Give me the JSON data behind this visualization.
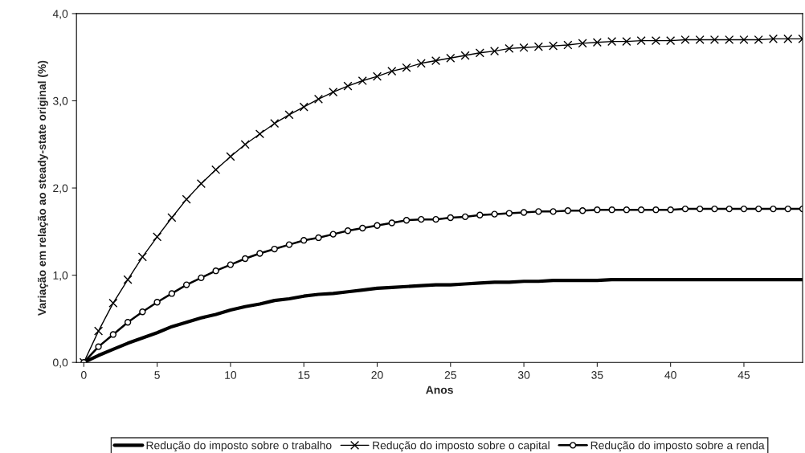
{
  "chart_data": {
    "type": "line",
    "xlabel": "Anos",
    "ylabel": "Variação em relação ao steady-state original (%)",
    "x": [
      0,
      1,
      2,
      3,
      4,
      5,
      6,
      7,
      8,
      9,
      10,
      11,
      12,
      13,
      14,
      15,
      16,
      17,
      18,
      19,
      20,
      21,
      22,
      23,
      24,
      25,
      26,
      27,
      28,
      29,
      30,
      31,
      32,
      33,
      34,
      35,
      36,
      37,
      38,
      39,
      40,
      41,
      42,
      43,
      44,
      45,
      46,
      47,
      48,
      49
    ],
    "series": [
      {
        "name": "Redução do imposto sobre o trabalho",
        "color": "#000000",
        "marker": "none",
        "values": [
          0,
          0.08,
          0.15,
          0.22,
          0.28,
          0.34,
          0.41,
          0.46,
          0.51,
          0.55,
          0.6,
          0.64,
          0.67,
          0.71,
          0.73,
          0.76,
          0.78,
          0.79,
          0.81,
          0.83,
          0.85,
          0.86,
          0.87,
          0.88,
          0.89,
          0.89,
          0.9,
          0.91,
          0.92,
          0.92,
          0.93,
          0.93,
          0.94,
          0.94,
          0.94,
          0.94,
          0.95,
          0.95,
          0.95,
          0.95,
          0.95,
          0.95,
          0.95,
          0.95,
          0.95,
          0.95,
          0.95,
          0.95,
          0.95,
          0.95
        ]
      },
      {
        "name": "Redução do imposto sobre o capital",
        "color": "#000000",
        "marker": "cross",
        "values": [
          0,
          0.36,
          0.68,
          0.95,
          1.21,
          1.44,
          1.66,
          1.87,
          2.05,
          2.21,
          2.36,
          2.5,
          2.62,
          2.74,
          2.84,
          2.93,
          3.02,
          3.1,
          3.17,
          3.23,
          3.28,
          3.34,
          3.38,
          3.43,
          3.46,
          3.49,
          3.52,
          3.55,
          3.57,
          3.6,
          3.61,
          3.62,
          3.63,
          3.64,
          3.66,
          3.67,
          3.68,
          3.68,
          3.69,
          3.69,
          3.69,
          3.7,
          3.7,
          3.7,
          3.7,
          3.7,
          3.7,
          3.71,
          3.71,
          3.71
        ]
      },
      {
        "name": "Redução do imposto sobre a renda",
        "color": "#000000",
        "marker": "circle",
        "values": [
          0,
          0.18,
          0.32,
          0.46,
          0.58,
          0.69,
          0.79,
          0.89,
          0.97,
          1.05,
          1.12,
          1.19,
          1.25,
          1.3,
          1.35,
          1.4,
          1.43,
          1.47,
          1.51,
          1.54,
          1.57,
          1.6,
          1.63,
          1.64,
          1.64,
          1.66,
          1.67,
          1.69,
          1.7,
          1.71,
          1.72,
          1.73,
          1.73,
          1.74,
          1.74,
          1.75,
          1.75,
          1.75,
          1.75,
          1.75,
          1.75,
          1.76,
          1.76,
          1.76,
          1.76,
          1.76,
          1.76,
          1.76,
          1.76,
          1.76
        ]
      }
    ],
    "xlim": [
      -0.5,
      49
    ],
    "xticks": [
      0,
      5,
      10,
      15,
      20,
      25,
      30,
      35,
      40,
      45
    ],
    "ylim": [
      0,
      4
    ],
    "yticks": [
      {
        "value": 0,
        "label": "0,0"
      },
      {
        "value": 1,
        "label": "1,0"
      },
      {
        "value": 2,
        "label": "2,0"
      },
      {
        "value": 3,
        "label": "3,0"
      },
      {
        "value": 4,
        "label": "4,0"
      }
    ],
    "grid": false,
    "legend": "bottom"
  }
}
